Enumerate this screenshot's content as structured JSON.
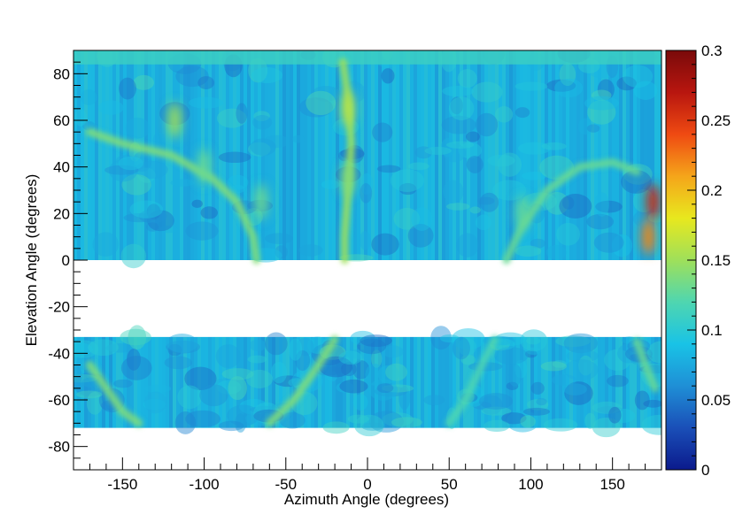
{
  "chart_data": {
    "type": "heatmap",
    "title": "",
    "xlabel": "Azimuth Angle (degrees)",
    "ylabel": "Elevation Angle (degrees)",
    "xlim": [
      -180,
      180
    ],
    "ylim": [
      -90,
      90
    ],
    "zlim": [
      0,
      0.3
    ],
    "x_ticks": [
      -150,
      -100,
      -50,
      0,
      50,
      100,
      150
    ],
    "y_ticks": [
      -80,
      -60,
      -40,
      -20,
      0,
      20,
      40,
      60,
      80
    ],
    "z_ticks": [
      "0",
      "0.05",
      "0.1",
      "0.15",
      "0.2",
      "0.25",
      "0.3"
    ],
    "colormap": [
      "#0b1a8c",
      "#1a4fb8",
      "#1f8fd6",
      "#19c3e6",
      "#4fd6b0",
      "#9fe05a",
      "#e8e81e",
      "#f5a51a",
      "#ef4a12",
      "#b8160f",
      "#7a0a0a"
    ],
    "filled_bands": [
      {
        "elevation_range": [
          0,
          90
        ],
        "typical_value": 0.08
      },
      {
        "elevation_range": [
          -72,
          -33
        ],
        "typical_value": 0.08
      }
    ],
    "empty_bands": [
      {
        "elevation_range": [
          -33,
          0
        ]
      },
      {
        "elevation_range": [
          -90,
          -72
        ]
      }
    ],
    "hotspots": [
      {
        "azimuth": 175,
        "elevation": 25,
        "value": 0.26
      },
      {
        "azimuth": 172,
        "elevation": 10,
        "value": 0.22
      },
      {
        "azimuth": -12,
        "elevation": 65,
        "value": 0.16
      },
      {
        "azimuth": -12,
        "elevation": 35,
        "value": 0.14
      },
      {
        "azimuth": -118,
        "elevation": 60,
        "value": 0.15
      },
      {
        "azimuth": 95,
        "elevation": 20,
        "value": 0.13
      },
      {
        "azimuth": -65,
        "elevation": 25,
        "value": 0.13
      },
      {
        "azimuth": -100,
        "elevation": 40,
        "value": 0.13
      }
    ],
    "ridges": [
      {
        "points": [
          [
            -170,
            55
          ],
          [
            -150,
            50
          ],
          [
            -120,
            45
          ],
          [
            -95,
            35
          ],
          [
            -80,
            25
          ],
          [
            -70,
            10
          ],
          [
            -68,
            0
          ]
        ],
        "value": 0.14
      },
      {
        "points": [
          [
            -15,
            85
          ],
          [
            -12,
            70
          ],
          [
            -10,
            50
          ],
          [
            -12,
            30
          ],
          [
            -14,
            10
          ],
          [
            -14,
            0
          ]
        ],
        "value": 0.15
      },
      {
        "points": [
          [
            85,
            0
          ],
          [
            95,
            15
          ],
          [
            110,
            30
          ],
          [
            130,
            40
          ],
          [
            150,
            42
          ],
          [
            165,
            38
          ]
        ],
        "value": 0.13
      },
      {
        "points": [
          [
            -170,
            -45
          ],
          [
            -160,
            -55
          ],
          [
            -150,
            -65
          ],
          [
            -140,
            -70
          ]
        ],
        "value": 0.14
      },
      {
        "points": [
          [
            -60,
            -70
          ],
          [
            -45,
            -60
          ],
          [
            -30,
            -45
          ],
          [
            -20,
            -34
          ]
        ],
        "value": 0.14
      },
      {
        "points": [
          [
            50,
            -70
          ],
          [
            60,
            -60
          ],
          [
            70,
            -45
          ],
          [
            78,
            -34
          ]
        ],
        "value": 0.12
      },
      {
        "points": [
          [
            165,
            -35
          ],
          [
            170,
            -45
          ],
          [
            176,
            -55
          ]
        ],
        "value": 0.13
      }
    ]
  }
}
